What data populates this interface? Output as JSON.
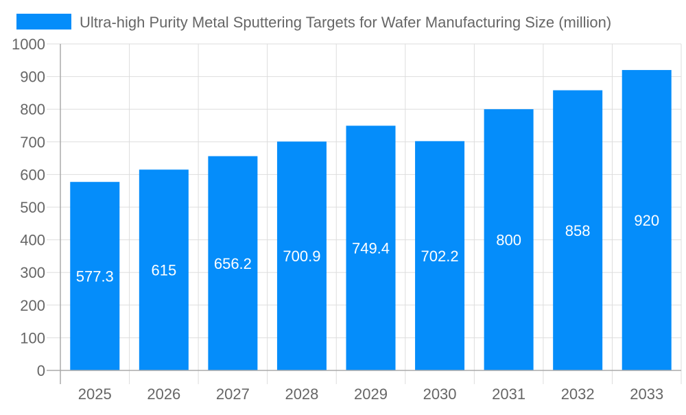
{
  "chart_data": {
    "type": "bar",
    "title": "",
    "legend": {
      "position": "top",
      "entries": [
        "Ultra-high Purity Metal Sputtering Targets for Wafer Manufacturing Size (million)"
      ]
    },
    "categories": [
      "2025",
      "2026",
      "2027",
      "2028",
      "2029",
      "2030",
      "2031",
      "2032",
      "2033"
    ],
    "series": [
      {
        "name": "Ultra-high Purity Metal Sputtering Targets for Wafer Manufacturing Size (million)",
        "values": [
          577.3,
          615,
          656.2,
          700.9,
          749.4,
          702.2,
          800,
          858,
          920
        ],
        "labels": [
          "577.3",
          "615",
          "656.2",
          "700.9",
          "749.4",
          "702.2",
          "800",
          "858",
          "920"
        ],
        "color": "#058DFA"
      }
    ],
    "xlabel": "",
    "ylabel": "",
    "ylim": [
      0,
      1000
    ],
    "yticks": [
      "0",
      "100",
      "200",
      "300",
      "400",
      "500",
      "600",
      "700",
      "800",
      "900",
      "1000"
    ],
    "grid": true
  }
}
